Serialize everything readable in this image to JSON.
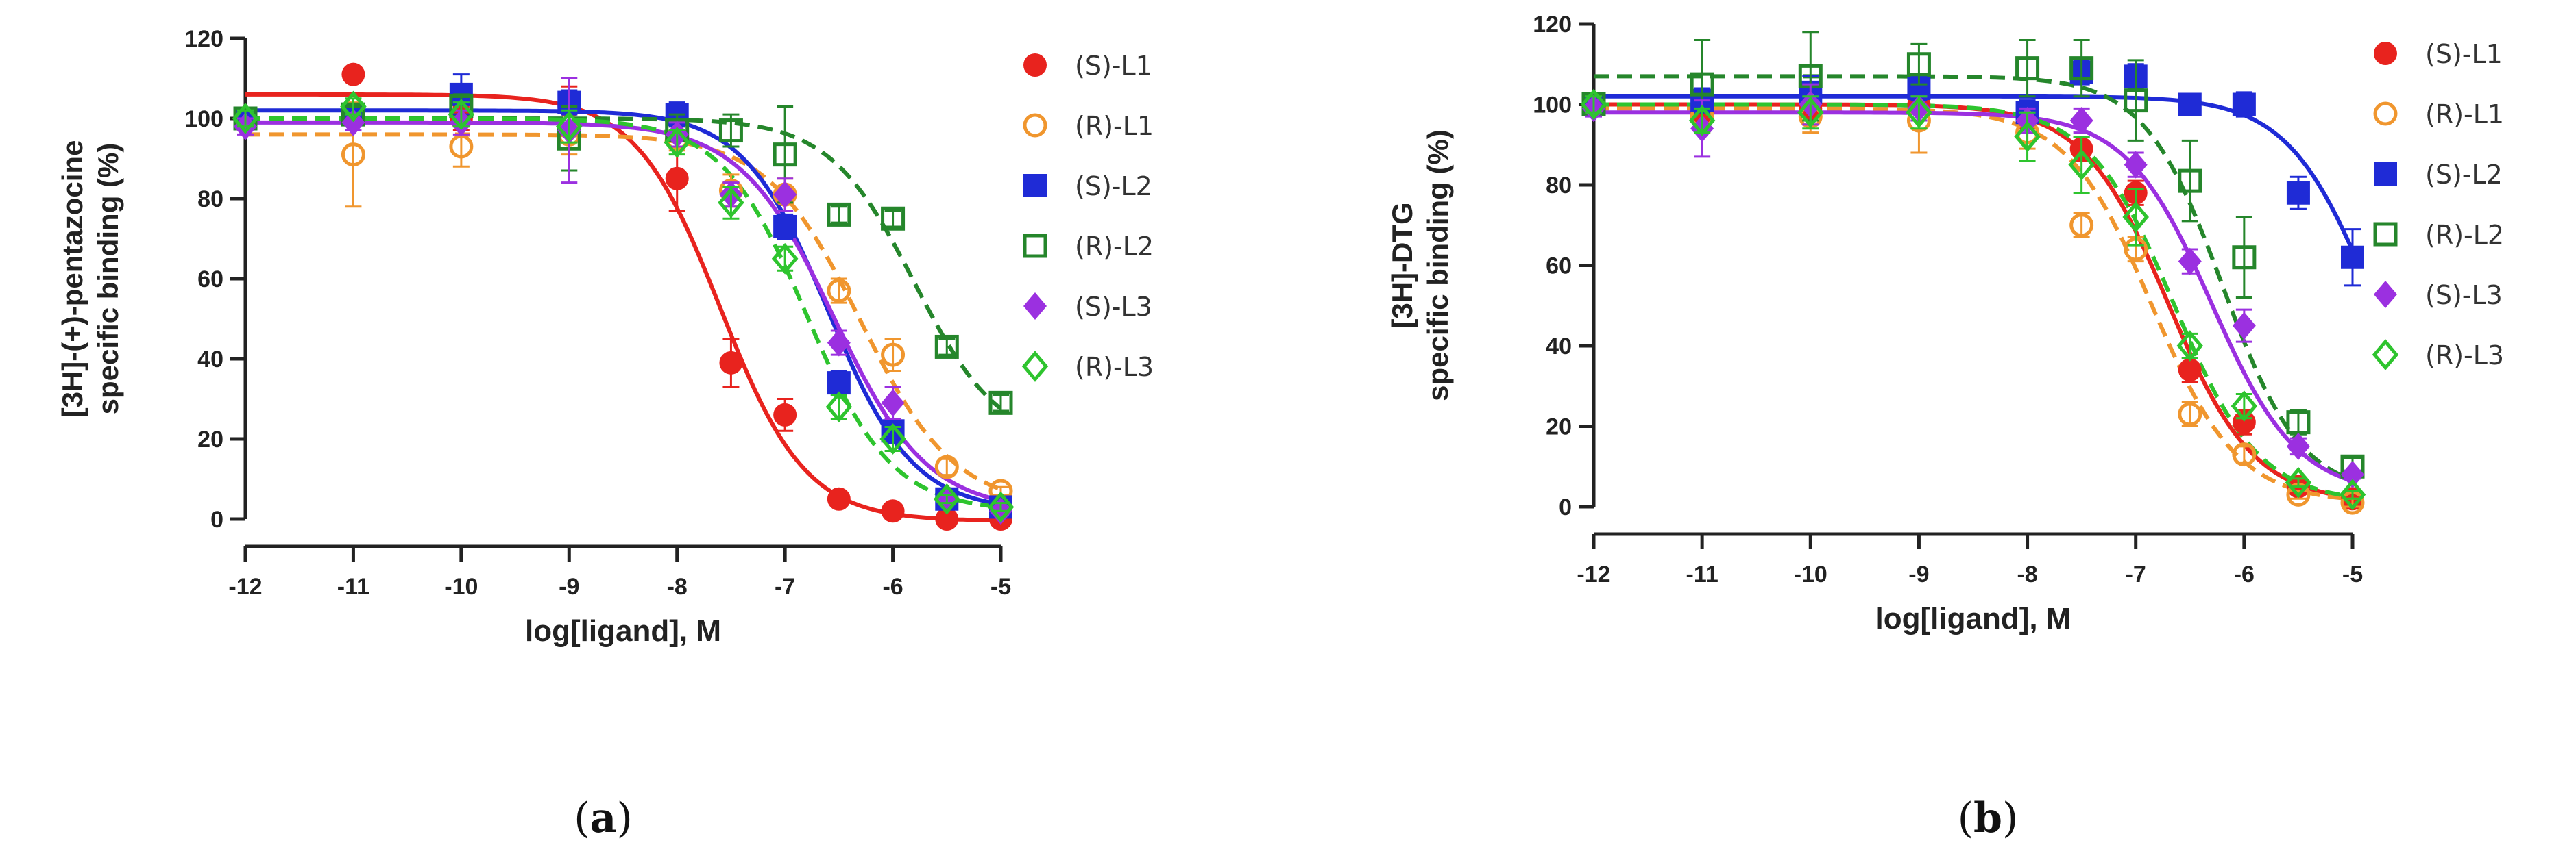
{
  "chart_data": [
    {
      "type": "scatter",
      "panel_label": "(a)",
      "panel_letter": "a",
      "xlabel": "log[ligand], M",
      "ylabel_line1": "[3H]-(+)-pentazocine",
      "ylabel_line2": "specific binding (%)",
      "xlim": [
        -12,
        -5
      ],
      "ylim": [
        0,
        120
      ],
      "x_ticks": [
        -12,
        -11,
        -10,
        -9,
        -8,
        -7,
        -6,
        -5
      ],
      "y_ticks": [
        0,
        20,
        40,
        60,
        80,
        100,
        120
      ],
      "x_tick_labels": [
        "-12",
        "-11",
        "-10",
        "-9",
        "-8",
        "-7",
        "-6",
        "-5"
      ],
      "y_tick_labels": [
        "0",
        "20",
        "40",
        "60",
        "80",
        "100",
        "120"
      ],
      "legend_position": "right",
      "series": [
        {
          "name": "(S)-L1",
          "color": "#e8231e",
          "marker": "filled-circle",
          "line": "solid",
          "x": [
            -12,
            -11,
            -10,
            -9,
            -8,
            -7.5,
            -7,
            -6.5,
            -6,
            -5.5,
            -5
          ],
          "y": [
            100,
            111,
            100,
            103,
            85,
            39,
            26,
            5,
            2,
            0,
            0
          ],
          "err": [
            2,
            0,
            3,
            5,
            8,
            6,
            4,
            1,
            1,
            1,
            1
          ],
          "fit": {
            "top": 106,
            "bottom": -0.5,
            "logIC50": -7.6,
            "hill": 1.1
          }
        },
        {
          "name": "(R)-L1",
          "color": "#f0962e",
          "marker": "open-circle",
          "line": "dashed",
          "x": [
            -12,
            -11,
            -10,
            -9,
            -8,
            -7.5,
            -7,
            -6.5,
            -6,
            -5.5,
            -5
          ],
          "y": [
            100,
            91,
            93,
            96,
            95,
            82,
            81,
            57,
            41,
            13,
            7
          ],
          "err": [
            2,
            13,
            5,
            5,
            3,
            4,
            4,
            3,
            4,
            2,
            1
          ],
          "fit": {
            "top": 96,
            "bottom": 3,
            "logIC50": -6.3,
            "hill": 1.0
          }
        },
        {
          "name": "(S)-L2",
          "color": "#1f2bd6",
          "marker": "filled-square",
          "line": "solid",
          "x": [
            -12,
            -11,
            -10,
            -9,
            -8,
            -7,
            -6.5,
            -6,
            -5.5,
            -5
          ],
          "y": [
            100,
            101,
            106,
            104,
            101,
            73,
            34,
            22,
            5,
            3
          ],
          "err": [
            2,
            2,
            5,
            3,
            3,
            3,
            3,
            3,
            1,
            1
          ],
          "fit": {
            "top": 102,
            "bottom": 2,
            "logIC50": -6.6,
            "hill": 1.1
          }
        },
        {
          "name": "(R)-L2",
          "color": "#25862b",
          "marker": "open-square",
          "line": "dashed",
          "x": [
            -12,
            -11,
            -10,
            -9,
            -8,
            -7.5,
            -7,
            -6.5,
            -6,
            -5.5,
            -5
          ],
          "y": [
            100,
            101,
            103,
            95,
            97,
            97,
            91,
            76,
            75,
            43,
            29
          ],
          "err": [
            2,
            2,
            3,
            8,
            4,
            4,
            12,
            2,
            2,
            2,
            2
          ],
          "fit": {
            "top": 100,
            "bottom": 18,
            "logIC50": -5.8,
            "hill": 1.1
          }
        },
        {
          "name": "(S)-L3",
          "color": "#9b30e0",
          "marker": "filled-diamond",
          "line": "solid",
          "x": [
            -12,
            -11,
            -10,
            -9,
            -8,
            -7.5,
            -7,
            -6.5,
            -6,
            -5.5,
            -5
          ],
          "y": [
            98,
            99,
            99,
            97,
            96,
            81,
            81,
            44,
            29,
            5,
            2
          ],
          "err": [
            2,
            2,
            3,
            13,
            3,
            3,
            4,
            3,
            4,
            1,
            1
          ],
          "fit": {
            "top": 99,
            "bottom": 2,
            "logIC50": -6.55,
            "hill": 1.0
          }
        },
        {
          "name": "(R)-L3",
          "color": "#2ec42e",
          "marker": "open-diamond",
          "line": "dashed",
          "x": [
            -12,
            -11,
            -10,
            -9,
            -8,
            -7.5,
            -7,
            -6.5,
            -6,
            -5.5,
            -5
          ],
          "y": [
            100,
            103,
            101,
            98,
            94,
            79,
            65,
            28,
            20,
            5,
            3
          ],
          "err": [
            2,
            2,
            3,
            4,
            3,
            4,
            3,
            3,
            3,
            1,
            1
          ],
          "fit": {
            "top": 100,
            "bottom": 2,
            "logIC50": -6.8,
            "hill": 1.1
          }
        }
      ]
    },
    {
      "type": "scatter",
      "panel_label": "(b)",
      "panel_letter": "b",
      "xlabel": "log[ligand], M",
      "ylabel_line1": "[3H]-DTG",
      "ylabel_line2": "specific binding (%)",
      "xlim": [
        -12,
        -5
      ],
      "ylim": [
        0,
        120
      ],
      "x_ticks": [
        -12,
        -11,
        -10,
        -9,
        -8,
        -7,
        -6,
        -5
      ],
      "y_ticks": [
        0,
        20,
        40,
        60,
        80,
        100,
        120
      ],
      "x_tick_labels": [
        "-12",
        "-11",
        "-10",
        "-9",
        "-8",
        "-7",
        "-6",
        "-5"
      ],
      "y_tick_labels": [
        "0",
        "20",
        "40",
        "60",
        "80",
        "100",
        "120"
      ],
      "legend_position": "right",
      "series": [
        {
          "name": "(S)-L1",
          "color": "#e8231e",
          "marker": "filled-circle",
          "line": "solid",
          "x": [
            -12,
            -11,
            -10,
            -9,
            -8,
            -7.5,
            -7,
            -6.5,
            -6,
            -5.5,
            -5
          ],
          "y": [
            100,
            98,
            99,
            100,
            97,
            89,
            78,
            34,
            21,
            5,
            2
          ],
          "err": [
            2,
            4,
            4,
            4,
            3,
            3,
            3,
            3,
            3,
            1,
            1
          ],
          "fit": {
            "top": 100,
            "bottom": 1,
            "logIC50": -6.7,
            "hill": 1.1
          }
        },
        {
          "name": "(R)-L1",
          "color": "#f0962e",
          "marker": "open-circle",
          "line": "dashed",
          "x": [
            -12,
            -11,
            -10,
            -9,
            -8,
            -7.5,
            -7,
            -6.5,
            -6,
            -5.5,
            -5
          ],
          "y": [
            100,
            97,
            97,
            96,
            93,
            70,
            64,
            23,
            13,
            3,
            1
          ],
          "err": [
            2,
            4,
            4,
            8,
            4,
            3,
            3,
            3,
            2,
            1,
            1
          ],
          "fit": {
            "top": 99,
            "bottom": 1,
            "logIC50": -6.85,
            "hill": 1.1
          }
        },
        {
          "name": "(S)-L2",
          "color": "#1f2bd6",
          "marker": "filled-square",
          "line": "solid",
          "x": [
            -12,
            -11,
            -10,
            -9,
            -8,
            -7.5,
            -7,
            -6.5,
            -6,
            -5.5,
            -5
          ],
          "y": [
            100,
            101,
            103,
            104,
            98,
            108,
            107,
            100,
            100,
            78,
            62
          ],
          "err": [
            2,
            3,
            4,
            3,
            3,
            3,
            3,
            2,
            3,
            4,
            7
          ],
          "fit": {
            "top": 102,
            "bottom": 0,
            "logIC50": -4.8,
            "hill": 1.1
          }
        },
        {
          "name": "(R)-L2",
          "color": "#25862b",
          "marker": "open-square",
          "line": "dashed",
          "x": [
            -12,
            -11,
            -10,
            -9,
            -8,
            -7.5,
            -7,
            -6.5,
            -6,
            -5.5,
            -5
          ],
          "y": [
            100,
            105,
            107,
            110,
            109,
            109,
            101,
            81,
            62,
            21,
            10
          ],
          "err": [
            2,
            11,
            11,
            5,
            7,
            7,
            10,
            10,
            10,
            3,
            2
          ],
          "fit": {
            "top": 107,
            "bottom": 3,
            "logIC50": -6.2,
            "hill": 1.2
          }
        },
        {
          "name": "(S)-L3",
          "color": "#9b30e0",
          "marker": "filled-diamond",
          "line": "solid",
          "x": [
            -12,
            -11,
            -10,
            -9,
            -8,
            -7.5,
            -7,
            -6.5,
            -6,
            -5.5,
            -5
          ],
          "y": [
            99,
            94,
            100,
            99,
            96,
            96,
            85,
            61,
            45,
            15,
            8
          ],
          "err": [
            2,
            7,
            5,
            3,
            3,
            3,
            3,
            3,
            4,
            2,
            1
          ],
          "fit": {
            "top": 98,
            "bottom": 3,
            "logIC50": -6.3,
            "hill": 1.1
          }
        },
        {
          "name": "(R)-L3",
          "color": "#2ec42e",
          "marker": "open-diamond",
          "line": "dashed",
          "x": [
            -12,
            -11,
            -10,
            -9,
            -8,
            -7.5,
            -7,
            -6.5,
            -6,
            -5.5,
            -5
          ],
          "y": [
            100,
            96,
            98,
            98,
            92,
            85,
            72,
            40,
            25,
            6,
            3
          ],
          "err": [
            2,
            3,
            4,
            4,
            6,
            7,
            7,
            3,
            3,
            1,
            1
          ],
          "fit": {
            "top": 100,
            "bottom": 1,
            "logIC50": -6.65,
            "hill": 1.1
          }
        }
      ]
    }
  ]
}
